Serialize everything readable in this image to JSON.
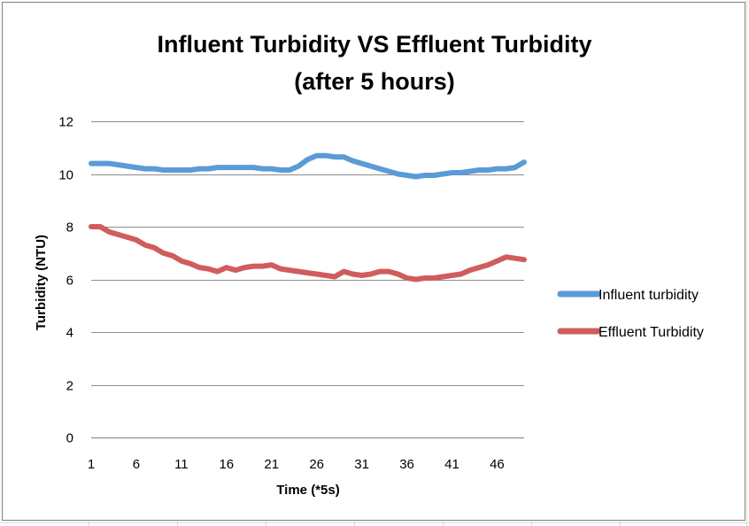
{
  "chart_data": {
    "type": "line",
    "title_line1": "Influent Turbidity VS Effluent Turbidity",
    "title_line2": "(after 5 hours)",
    "xlabel": "Time (*5s)",
    "ylabel": "Turbidity (NTU)",
    "ylim": [
      0,
      12
    ],
    "yticks": [
      0,
      2,
      4,
      6,
      8,
      10,
      12
    ],
    "xticks": [
      1,
      6,
      11,
      16,
      21,
      26,
      31,
      36,
      41,
      46
    ],
    "x": [
      1,
      2,
      3,
      4,
      5,
      6,
      7,
      8,
      9,
      10,
      11,
      12,
      13,
      14,
      15,
      16,
      17,
      18,
      19,
      20,
      21,
      22,
      23,
      24,
      25,
      26,
      27,
      28,
      29,
      30,
      31,
      32,
      33,
      34,
      35,
      36,
      37,
      38,
      39,
      40,
      41,
      42,
      43,
      44,
      45,
      46,
      47,
      48,
      49
    ],
    "grid": true,
    "legend_position": "right",
    "series": [
      {
        "name": "Influent turbidity",
        "color": "#5b9bd5",
        "values": [
          10.4,
          10.4,
          10.4,
          10.35,
          10.3,
          10.25,
          10.2,
          10.2,
          10.15,
          10.15,
          10.15,
          10.15,
          10.2,
          10.2,
          10.25,
          10.25,
          10.25,
          10.25,
          10.25,
          10.2,
          10.2,
          10.15,
          10.15,
          10.3,
          10.55,
          10.7,
          10.7,
          10.65,
          10.65,
          10.5,
          10.4,
          10.3,
          10.2,
          10.1,
          10.0,
          9.95,
          9.9,
          9.95,
          9.95,
          10.0,
          10.05,
          10.05,
          10.1,
          10.15,
          10.15,
          10.2,
          10.2,
          10.25,
          10.45
        ]
      },
      {
        "name": "Effluent Turbidity",
        "color": "#d05c5c",
        "values": [
          8.0,
          8.0,
          7.8,
          7.7,
          7.6,
          7.5,
          7.3,
          7.2,
          7.0,
          6.9,
          6.7,
          6.6,
          6.45,
          6.4,
          6.3,
          6.45,
          6.35,
          6.45,
          6.5,
          6.5,
          6.55,
          6.4,
          6.35,
          6.3,
          6.25,
          6.2,
          6.15,
          6.1,
          6.3,
          6.2,
          6.15,
          6.2,
          6.3,
          6.3,
          6.2,
          6.05,
          6.0,
          6.05,
          6.05,
          6.1,
          6.15,
          6.2,
          6.35,
          6.45,
          6.55,
          6.7,
          6.85,
          6.8,
          6.75
        ]
      }
    ]
  }
}
